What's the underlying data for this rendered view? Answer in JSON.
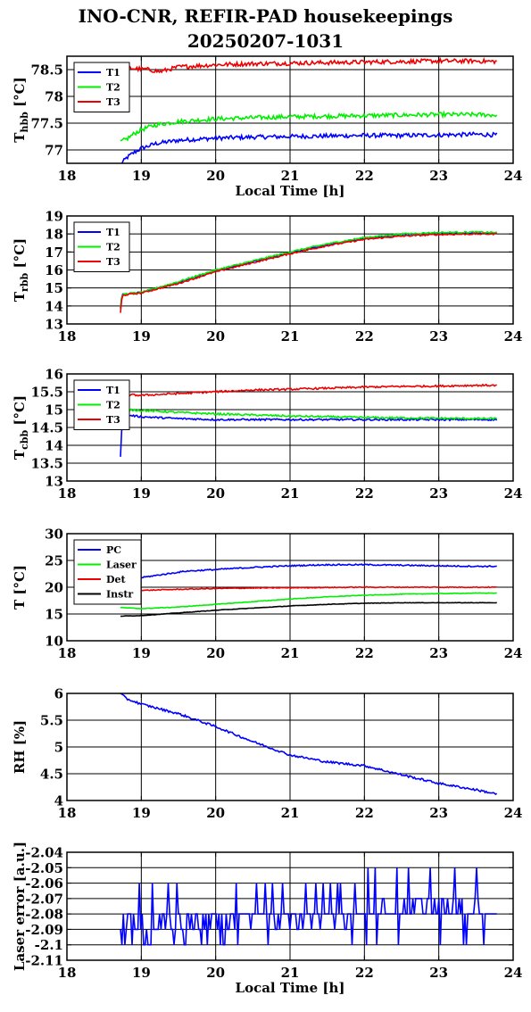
{
  "figure": {
    "title_line1": "INO-CNR, REFIR-PAD housekeepings",
    "title_line2": "20250207-1031"
  },
  "colors": {
    "blue": "#0000ff",
    "green": "#00ee00",
    "red": "#ee0000",
    "black": "#000000",
    "grid": "#000000"
  },
  "chart_data": [
    {
      "type": "line",
      "ylabel": "T_hbb [°C]",
      "xlabel": "Local Time [h]",
      "xlim": [
        18,
        24
      ],
      "ylim": [
        76.75,
        78.75
      ],
      "xticks": [
        "18",
        "19",
        "20",
        "21",
        "22",
        "23",
        "24"
      ],
      "yticks": [
        {
          "v": 77,
          "label": "77"
        },
        {
          "v": 77.5,
          "label": "77.5"
        },
        {
          "v": 78,
          "label": "78"
        },
        {
          "v": 78.5,
          "label": "78.5"
        }
      ],
      "grid": true,
      "legend": "top-left",
      "series": [
        {
          "name": "T1",
          "color": "#0000ff",
          "x": [
            18.72,
            18.8,
            18.9,
            19.0,
            19.2,
            19.5,
            20.0,
            20.5,
            21.0,
            21.5,
            22.0,
            22.5,
            23.0,
            23.5,
            23.78
          ],
          "y": [
            76.72,
            76.85,
            76.95,
            77.03,
            77.12,
            77.18,
            77.22,
            77.24,
            77.25,
            77.26,
            77.27,
            77.27,
            77.28,
            77.29,
            77.28
          ],
          "noise": 0.04
        },
        {
          "name": "T2",
          "color": "#00ee00",
          "x": [
            18.72,
            18.8,
            18.9,
            19.0,
            19.2,
            19.5,
            20.0,
            20.5,
            21.0,
            21.5,
            22.0,
            22.5,
            23.0,
            23.5,
            23.78
          ],
          "y": [
            77.15,
            77.2,
            77.3,
            77.38,
            77.47,
            77.53,
            77.58,
            77.6,
            77.62,
            77.63,
            77.64,
            77.65,
            77.66,
            77.66,
            77.65
          ],
          "noise": 0.04
        },
        {
          "name": "T3",
          "color": "#ee0000",
          "x": [
            18.72,
            18.9,
            19.1,
            19.25,
            19.5,
            20.0,
            20.5,
            21.0,
            21.5,
            22.0,
            22.5,
            23.0,
            23.5,
            23.78
          ],
          "y": [
            78.56,
            78.52,
            78.5,
            78.46,
            78.55,
            78.59,
            78.61,
            78.62,
            78.63,
            78.64,
            78.65,
            78.66,
            78.66,
            78.65
          ],
          "noise": 0.04
        }
      ]
    },
    {
      "type": "line",
      "ylabel": "T_rbb [°C]",
      "xlabel": "",
      "xlim": [
        18,
        24
      ],
      "ylim": [
        13,
        19
      ],
      "xticks": [
        "18",
        "19",
        "20",
        "21",
        "22",
        "23",
        "24"
      ],
      "yticks": [
        {
          "v": 13,
          "label": "13"
        },
        {
          "v": 14,
          "label": "14"
        },
        {
          "v": 15,
          "label": "15"
        },
        {
          "v": 16,
          "label": "16"
        },
        {
          "v": 17,
          "label": "17"
        },
        {
          "v": 18,
          "label": "18"
        },
        {
          "v": 19,
          "label": "19"
        }
      ],
      "grid": true,
      "legend": "top-left",
      "series": [
        {
          "name": "T1",
          "color": "#0000ff",
          "x": [
            18.72,
            18.74,
            18.76,
            18.85,
            19.0,
            19.5,
            20.0,
            20.5,
            21.0,
            21.5,
            22.0,
            22.5,
            23.0,
            23.5,
            23.78
          ],
          "y": [
            13.9,
            14.6,
            14.65,
            14.7,
            14.75,
            15.3,
            15.95,
            16.45,
            16.95,
            17.4,
            17.75,
            17.95,
            18.05,
            18.05,
            18.05
          ],
          "noise": 0.04
        },
        {
          "name": "T2",
          "color": "#00ee00",
          "x": [
            18.72,
            18.74,
            18.76,
            18.85,
            19.0,
            19.5,
            20.0,
            20.5,
            21.0,
            21.5,
            22.0,
            22.5,
            23.0,
            23.5,
            23.78
          ],
          "y": [
            13.8,
            14.6,
            14.65,
            14.7,
            14.75,
            15.35,
            16.0,
            16.5,
            17.0,
            17.45,
            17.8,
            18.0,
            18.08,
            18.1,
            18.08
          ],
          "noise": 0.04
        },
        {
          "name": "T3",
          "color": "#ee0000",
          "x": [
            18.72,
            18.74,
            18.76,
            18.85,
            19.0,
            19.5,
            20.0,
            20.5,
            21.0,
            21.5,
            22.0,
            22.5,
            23.0,
            23.5,
            23.78
          ],
          "y": [
            13.6,
            14.5,
            14.6,
            14.65,
            14.72,
            15.25,
            15.9,
            16.4,
            16.9,
            17.35,
            17.7,
            17.88,
            17.97,
            18.0,
            18.0
          ],
          "noise": 0.04
        }
      ]
    },
    {
      "type": "line",
      "ylabel": "T_cbb [°C]",
      "xlabel": "",
      "xlim": [
        18,
        24
      ],
      "ylim": [
        13,
        16
      ],
      "xticks": [
        "18",
        "19",
        "20",
        "21",
        "22",
        "23",
        "24"
      ],
      "yticks": [
        {
          "v": 13,
          "label": "13"
        },
        {
          "v": 13.5,
          "label": "13.5"
        },
        {
          "v": 14,
          "label": "14"
        },
        {
          "v": 14.5,
          "label": "14.5"
        },
        {
          "v": 15,
          "label": "15"
        },
        {
          "v": 15.5,
          "label": "15.5"
        },
        {
          "v": 16,
          "label": "16"
        }
      ],
      "grid": true,
      "legend": "top-left",
      "series": [
        {
          "name": "T1",
          "color": "#0000ff",
          "x": [
            18.72,
            18.73,
            18.76,
            18.8,
            19.0,
            19.5,
            20.0,
            20.5,
            21.0,
            21.5,
            22.0,
            22.5,
            23.0,
            23.5,
            23.78
          ],
          "y": [
            13.7,
            14.3,
            14.85,
            14.85,
            14.8,
            14.75,
            14.72,
            14.72,
            14.72,
            14.72,
            14.72,
            14.72,
            14.72,
            14.72,
            14.72
          ],
          "noise": 0.025
        },
        {
          "name": "T2",
          "color": "#00ee00",
          "x": [
            18.72,
            18.76,
            19.0,
            19.5,
            20.0,
            20.5,
            21.0,
            21.5,
            22.0,
            22.5,
            23.0,
            23.5,
            23.78
          ],
          "y": [
            14.9,
            15.0,
            14.98,
            14.92,
            14.88,
            14.85,
            14.82,
            14.8,
            14.78,
            14.77,
            14.76,
            14.75,
            14.75
          ],
          "noise": 0.025
        },
        {
          "name": "T3",
          "color": "#ee0000",
          "x": [
            18.72,
            18.76,
            19.0,
            19.5,
            20.0,
            20.5,
            21.0,
            21.5,
            22.0,
            22.5,
            23.0,
            23.5,
            23.78
          ],
          "y": [
            15.45,
            15.42,
            15.4,
            15.45,
            15.5,
            15.55,
            15.57,
            15.6,
            15.63,
            15.65,
            15.66,
            15.68,
            15.68
          ],
          "noise": 0.025
        }
      ]
    },
    {
      "type": "line",
      "ylabel": "T [°C]",
      "xlabel": "",
      "xlim": [
        18,
        24
      ],
      "ylim": [
        10,
        30
      ],
      "xticks": [
        "18",
        "19",
        "20",
        "21",
        "22",
        "23",
        "24"
      ],
      "yticks": [
        {
          "v": 10,
          "label": "10"
        },
        {
          "v": 15,
          "label": "15"
        },
        {
          "v": 20,
          "label": "20"
        },
        {
          "v": 25,
          "label": "25"
        },
        {
          "v": 30,
          "label": "30"
        }
      ],
      "grid": true,
      "legend": "top-left",
      "series": [
        {
          "name": "PC",
          "color": "#0000ff",
          "x": [
            18.72,
            19.0,
            19.3,
            19.6,
            20.0,
            20.5,
            21.0,
            21.5,
            22.0,
            22.5,
            23.0,
            23.5,
            23.78
          ],
          "y": [
            21.2,
            21.8,
            22.4,
            23.0,
            23.3,
            23.7,
            24.0,
            24.2,
            24.2,
            24.1,
            24.0,
            23.9,
            23.9
          ],
          "noise": 0.12
        },
        {
          "name": "Laser",
          "color": "#00ee00",
          "x": [
            18.72,
            19.0,
            19.5,
            20.0,
            20.5,
            21.0,
            21.5,
            22.0,
            22.5,
            23.0,
            23.5,
            23.78
          ],
          "y": [
            16.2,
            16.0,
            16.3,
            16.8,
            17.3,
            17.8,
            18.2,
            18.5,
            18.7,
            18.8,
            18.9,
            18.9
          ],
          "noise": 0.05
        },
        {
          "name": "Det",
          "color": "#ee0000",
          "x": [
            18.72,
            19.0,
            19.5,
            20.0,
            20.5,
            21.0,
            21.5,
            22.0,
            22.5,
            23.0,
            23.5,
            23.78
          ],
          "y": [
            19.3,
            19.4,
            19.6,
            19.75,
            19.85,
            19.9,
            19.95,
            20.0,
            20.0,
            20.0,
            20.0,
            20.0
          ],
          "noise": 0.08
        },
        {
          "name": "Instr",
          "color": "#000000",
          "x": [
            18.72,
            19.0,
            19.5,
            20.0,
            20.5,
            21.0,
            21.5,
            22.0,
            22.5,
            23.0,
            23.5,
            23.78
          ],
          "y": [
            14.6,
            14.7,
            15.2,
            15.7,
            16.1,
            16.5,
            16.8,
            17.0,
            17.1,
            17.1,
            17.1,
            17.1
          ],
          "noise": 0.04
        }
      ]
    },
    {
      "type": "line",
      "ylabel": "RH [%]",
      "xlabel": "",
      "xlim": [
        18,
        24
      ],
      "ylim": [
        4,
        6
      ],
      "xticks": [
        "18",
        "19",
        "20",
        "21",
        "22",
        "23",
        "24"
      ],
      "yticks": [
        {
          "v": 4,
          "label": "4"
        },
        {
          "v": 4.5,
          "label": "4.5"
        },
        {
          "v": 5,
          "label": "5"
        },
        {
          "v": 5.5,
          "label": "5.5"
        },
        {
          "v": 6,
          "label": "6"
        }
      ],
      "grid": true,
      "legend": "none",
      "series": [
        {
          "name": "",
          "color": "#0000ff",
          "x": [
            18.72,
            18.8,
            19.0,
            19.5,
            20.0,
            20.5,
            21.0,
            21.5,
            22.0,
            22.5,
            23.0,
            23.5,
            23.78
          ],
          "y": [
            6.0,
            5.9,
            5.8,
            5.62,
            5.38,
            5.1,
            4.85,
            4.72,
            4.65,
            4.48,
            4.32,
            4.2,
            4.12
          ],
          "noise": 0.02
        }
      ]
    },
    {
      "type": "line",
      "ylabel": "Laser error [a.u.]",
      "xlabel": "Local Time [h]",
      "xlim": [
        18,
        24
      ],
      "ylim": [
        -2.11,
        -2.04
      ],
      "xticks": [
        "18",
        "19",
        "20",
        "21",
        "22",
        "23",
        "24"
      ],
      "yticks": [
        {
          "v": -2.11,
          "label": "-2.11"
        },
        {
          "v": -2.1,
          "label": "-2.1"
        },
        {
          "v": -2.09,
          "label": "-2.09"
        },
        {
          "v": -2.08,
          "label": "-2.08"
        },
        {
          "v": -2.07,
          "label": "-2.07"
        },
        {
          "v": -2.06,
          "label": "-2.06"
        },
        {
          "v": -2.05,
          "label": "-2.05"
        },
        {
          "v": -2.04,
          "label": "-2.04"
        }
      ],
      "grid": true,
      "legend": "none",
      "series": [
        {
          "name": "",
          "color": "#0000ff",
          "x_start": 18.72,
          "x_end": 23.78,
          "levels": [
            -2.1,
            -2.09,
            -2.08,
            -2.07,
            -2.06,
            -2.05
          ],
          "segments": [
            [
              18.72,
              19.9,
              -2.09,
              -2.065,
              -2.1
            ],
            [
              19.9,
              21.9,
              -2.085,
              -2.06,
              -2.105
            ],
            [
              21.9,
              23.78,
              -2.075,
              -2.05,
              -2.095
            ]
          ]
        }
      ]
    }
  ]
}
